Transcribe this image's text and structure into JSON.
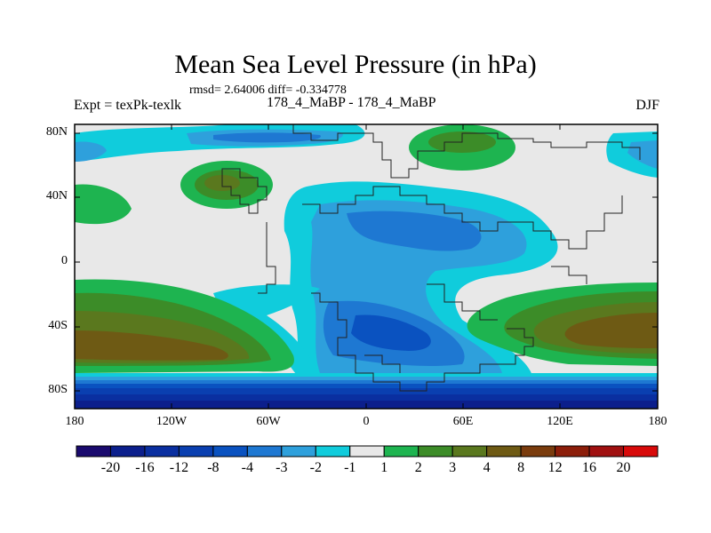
{
  "title": "Mean Sea Level Pressure (in hPa)",
  "stats": "rmsd= 2.64006 diff= -0.334778",
  "experiment": "Expt = texPk-texlk",
  "period": "178_4_MaBP - 178_4_MaBP",
  "season": "DJF",
  "lat_labels": [
    "80N",
    "40N",
    "0",
    "40S",
    "80S"
  ],
  "lon_labels": [
    "180",
    "120W",
    "60W",
    "0",
    "60E",
    "120E",
    "180"
  ],
  "colorbar": {
    "labels": [
      "-20",
      "-16",
      "-12",
      "-8",
      "-4",
      "-3",
      "-2",
      "-1",
      "1",
      "2",
      "3",
      "4",
      "8",
      "12",
      "16",
      "20"
    ],
    "colors": [
      "#1a0a6e",
      "#0c1f8c",
      "#0a2fa0",
      "#0a3fb0",
      "#0a52c0",
      "#1e78d2",
      "#2ea0dc",
      "#10ccdc",
      "#e8e8e8",
      "#1eb450",
      "#3c8c28",
      "#5a781e",
      "#6e5a14",
      "#7a3c0e",
      "#8c1e0a",
      "#a01010",
      "#d80a0a"
    ]
  }
}
